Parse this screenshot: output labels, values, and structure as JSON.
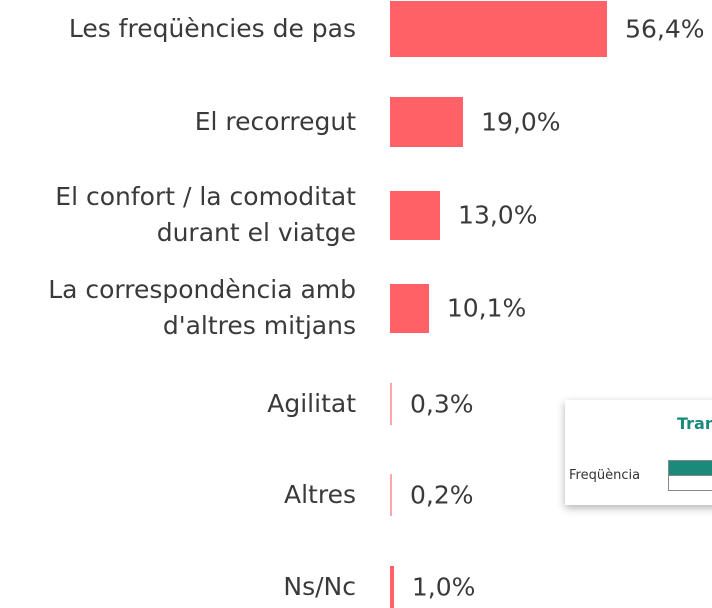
{
  "chart_data": {
    "type": "bar",
    "orientation": "horizontal",
    "categories": [
      "Les freqüències de pas",
      "El recorregut",
      "El confort / la comoditat\ndurant el viatge",
      "La correspondència amb\nd'altres mitjans",
      "Agilitat",
      "Altres",
      "Ns/Nc"
    ],
    "values": [
      56.4,
      19.0,
      13.0,
      10.1,
      0.3,
      0.2,
      1.0
    ],
    "value_labels": [
      "56,4%",
      "19,0%",
      "13,0%",
      "10,1%",
      "0,3%",
      "0,2%",
      "1,0%"
    ],
    "color": "#ff6166",
    "xlim": [
      0,
      60
    ]
  },
  "popup": {
    "title": "Tran",
    "label": "Freqüència"
  }
}
